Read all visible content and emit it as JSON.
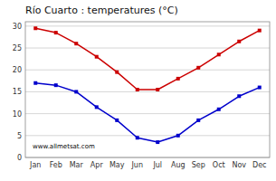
{
  "chart_data": {
    "type": "line",
    "title": "Río Cuarto : temperatures (°C)",
    "categories": [
      "Jan",
      "Feb",
      "Mar",
      "Apr",
      "May",
      "Jun",
      "Jul",
      "Aug",
      "Sep",
      "Oct",
      "Nov",
      "Dec"
    ],
    "series": [
      {
        "color": "#cc0000",
        "marker": "square",
        "values": [
          29.5,
          28.5,
          26.0,
          23.0,
          19.5,
          15.5,
          15.5,
          18.0,
          20.5,
          23.5,
          26.5,
          29.0
        ]
      },
      {
        "color": "#0000cc",
        "marker": "square",
        "values": [
          17.0,
          16.5,
          15.0,
          11.5,
          8.5,
          4.5,
          3.5,
          5.0,
          8.5,
          11.0,
          14.0,
          16.0
        ]
      }
    ],
    "ylim": [
      0,
      31
    ],
    "yticks": [
      0,
      5,
      10,
      15,
      20,
      25,
      30
    ],
    "grid": true,
    "annotations": [
      "www.allmetsat.com"
    ]
  }
}
